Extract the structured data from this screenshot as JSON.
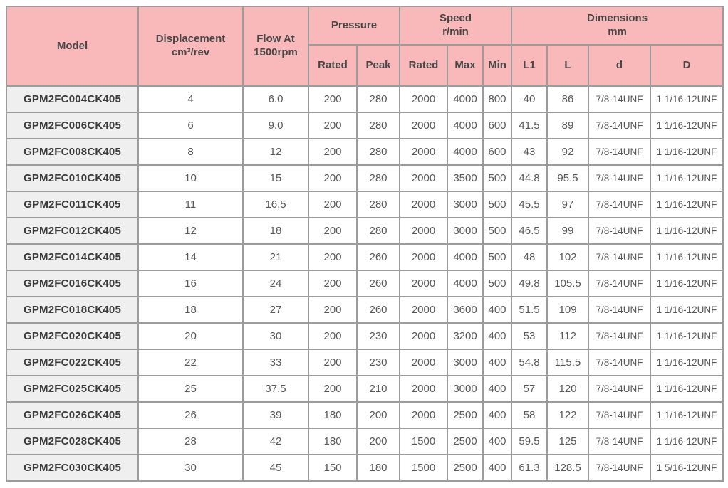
{
  "chart_data": {
    "type": "table",
    "header": {
      "model": "Model",
      "displacement": "Displacement\ncm³/rev",
      "flow": "Flow At\n1500rpm",
      "pressure": "Pressure",
      "speed": "Speed\nr/min",
      "dimensions": "Dimensions\nmm",
      "sub": [
        "Rated",
        "Peak",
        "Rated",
        "Max",
        "Min",
        "L1",
        "L",
        "d",
        "D"
      ]
    },
    "column_keys": [
      "model",
      "displacement",
      "flow",
      "pressure-rated",
      "pressure-peak",
      "speed-rated",
      "speed-max",
      "speed-min",
      "dim-l1",
      "dim-l",
      "dim-d",
      "dim-d-upper"
    ],
    "rows": [
      [
        "GPM2FC004CK405",
        "4",
        "6.0",
        "200",
        "280",
        "2000",
        "4000",
        "800",
        "40",
        "86",
        "7/8-14UNF",
        "1 1/16-12UNF"
      ],
      [
        "GPM2FC006CK405",
        "6",
        "9.0",
        "200",
        "280",
        "2000",
        "4000",
        "600",
        "41.5",
        "89",
        "7/8-14UNF",
        "1 1/16-12UNF"
      ],
      [
        "GPM2FC008CK405",
        "8",
        "12",
        "200",
        "280",
        "2000",
        "4000",
        "600",
        "43",
        "92",
        "7/8-14UNF",
        "1 1/16-12UNF"
      ],
      [
        "GPM2FC010CK405",
        "10",
        "15",
        "200",
        "280",
        "2000",
        "3500",
        "500",
        "44.8",
        "95.5",
        "7/8-14UNF",
        "1 1/16-12UNF"
      ],
      [
        "GPM2FC011CK405",
        "11",
        "16.5",
        "200",
        "280",
        "2000",
        "3000",
        "500",
        "45.5",
        "97",
        "7/8-14UNF",
        "1 1/16-12UNF"
      ],
      [
        "GPM2FC012CK405",
        "12",
        "18",
        "200",
        "280",
        "2000",
        "3000",
        "500",
        "46.5",
        "99",
        "7/8-14UNF",
        "1 1/16-12UNF"
      ],
      [
        "GPM2FC014CK405",
        "14",
        "21",
        "200",
        "260",
        "2000",
        "4000",
        "500",
        "48",
        "102",
        "7/8-14UNF",
        "1 1/16-12UNF"
      ],
      [
        "GPM2FC016CK405",
        "16",
        "24",
        "200",
        "260",
        "2000",
        "4000",
        "500",
        "49.8",
        "105.5",
        "7/8-14UNF",
        "1 1/16-12UNF"
      ],
      [
        "GPM2FC018CK405",
        "18",
        "27",
        "200",
        "260",
        "2000",
        "3600",
        "400",
        "51.5",
        "109",
        "7/8-14UNF",
        "1 1/16-12UNF"
      ],
      [
        "GPM2FC020CK405",
        "20",
        "30",
        "200",
        "230",
        "2000",
        "3200",
        "400",
        "53",
        "112",
        "7/8-14UNF",
        "1 1/16-12UNF"
      ],
      [
        "GPM2FC022CK405",
        "22",
        "33",
        "200",
        "230",
        "2000",
        "3000",
        "400",
        "54.8",
        "115.5",
        "7/8-14UNF",
        "1 1/16-12UNF"
      ],
      [
        "GPM2FC025CK405",
        "25",
        "37.5",
        "200",
        "210",
        "2000",
        "3000",
        "400",
        "57",
        "120",
        "7/8-14UNF",
        "1 1/16-12UNF"
      ],
      [
        "GPM2FC026CK405",
        "26",
        "39",
        "180",
        "200",
        "2000",
        "2500",
        "400",
        "58",
        "122",
        "7/8-14UNF",
        "1 1/16-12UNF"
      ],
      [
        "GPM2FC028CK405",
        "28",
        "42",
        "180",
        "200",
        "1500",
        "2500",
        "400",
        "59.5",
        "125",
        "7/8-14UNF",
        "1 1/16-12UNF"
      ],
      [
        "GPM2FC030CK405",
        "30",
        "45",
        "150",
        "180",
        "1500",
        "2500",
        "400",
        "61.3",
        "128.5",
        "7/8-14UNF",
        "1 5/16-12UNF"
      ]
    ]
  },
  "colors": {
    "header_bg": "#f9b8ba",
    "model_col_bg": "#efefef",
    "border": "#9c9c9c",
    "header_text": "#474747",
    "cell_text": "#585858"
  }
}
